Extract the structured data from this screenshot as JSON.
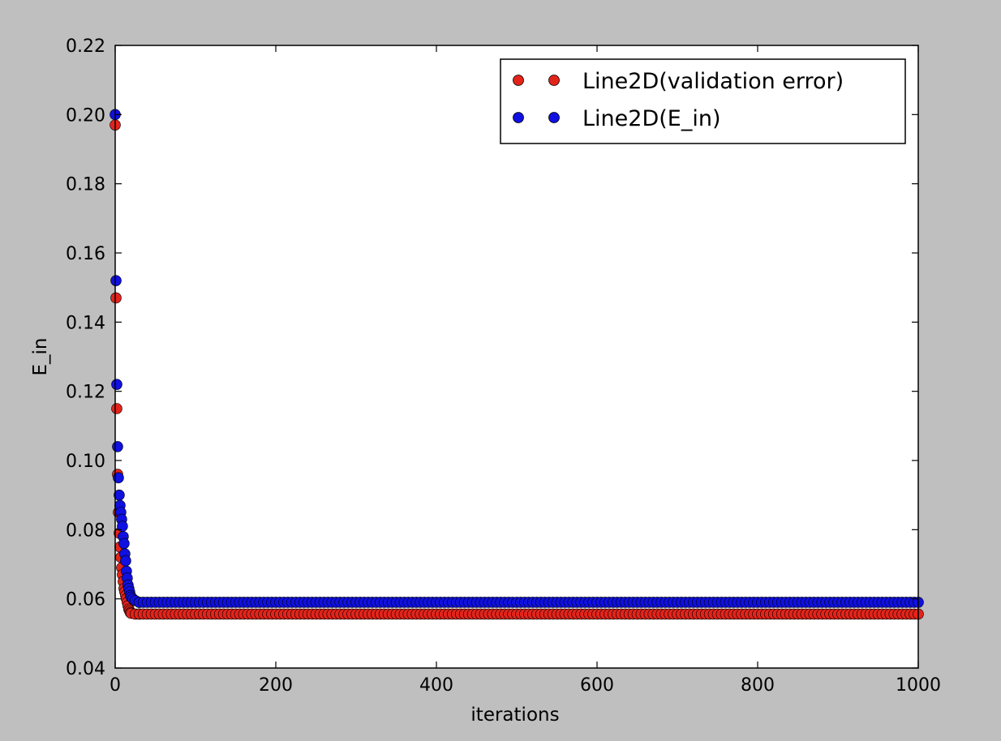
{
  "chart_data": {
    "type": "scatter",
    "title": "",
    "xlabel": "iterations",
    "ylabel": "E_in",
    "xlim": [
      0,
      1000
    ],
    "ylim": [
      0.04,
      0.22
    ],
    "xticks": [
      0,
      200,
      400,
      600,
      800,
      1000
    ],
    "xtick_labels": [
      "0",
      "200",
      "400",
      "600",
      "800",
      "1000"
    ],
    "yticks": [
      0.04,
      0.06,
      0.08,
      0.1,
      0.12,
      0.14,
      0.16,
      0.18,
      0.2,
      0.22
    ],
    "ytick_labels": [
      "0.04",
      "0.06",
      "0.08",
      "0.10",
      "0.12",
      "0.14",
      "0.16",
      "0.18",
      "0.20",
      "0.22"
    ],
    "grid": false,
    "legend_position": "top-right",
    "series": [
      {
        "name": "Line2D(validation error)",
        "color": "#e3241b",
        "x": [
          0,
          1,
          2,
          3,
          4,
          5,
          6,
          7,
          8,
          9,
          10,
          11,
          12,
          13,
          14,
          15,
          16,
          17,
          18,
          19,
          20,
          25,
          30
        ],
        "y": [
          0.197,
          0.147,
          0.115,
          0.096,
          0.085,
          0.079,
          0.075,
          0.072,
          0.069,
          0.067,
          0.065,
          0.063,
          0.062,
          0.061,
          0.06,
          0.059,
          0.058,
          0.057,
          0.0565,
          0.056,
          0.0558,
          0.0556,
          0.0556
        ],
        "plateau": {
          "from": 30,
          "to": 1000,
          "step": 5,
          "value": 0.0556
        }
      },
      {
        "name": "Line2D(E_in)",
        "color": "#1010e0",
        "x": [
          0,
          1,
          2,
          3,
          4,
          5,
          6,
          7,
          8,
          9,
          10,
          11,
          12,
          13,
          14,
          15,
          16,
          17,
          18,
          19,
          20,
          22,
          25,
          30
        ],
        "y": [
          0.2,
          0.152,
          0.122,
          0.104,
          0.095,
          0.09,
          0.087,
          0.085,
          0.083,
          0.081,
          0.078,
          0.076,
          0.073,
          0.071,
          0.068,
          0.066,
          0.064,
          0.063,
          0.062,
          0.061,
          0.0605,
          0.06,
          0.0595,
          0.059
        ],
        "plateau": {
          "from": 30,
          "to": 1000,
          "step": 5,
          "value": 0.059
        }
      }
    ]
  }
}
